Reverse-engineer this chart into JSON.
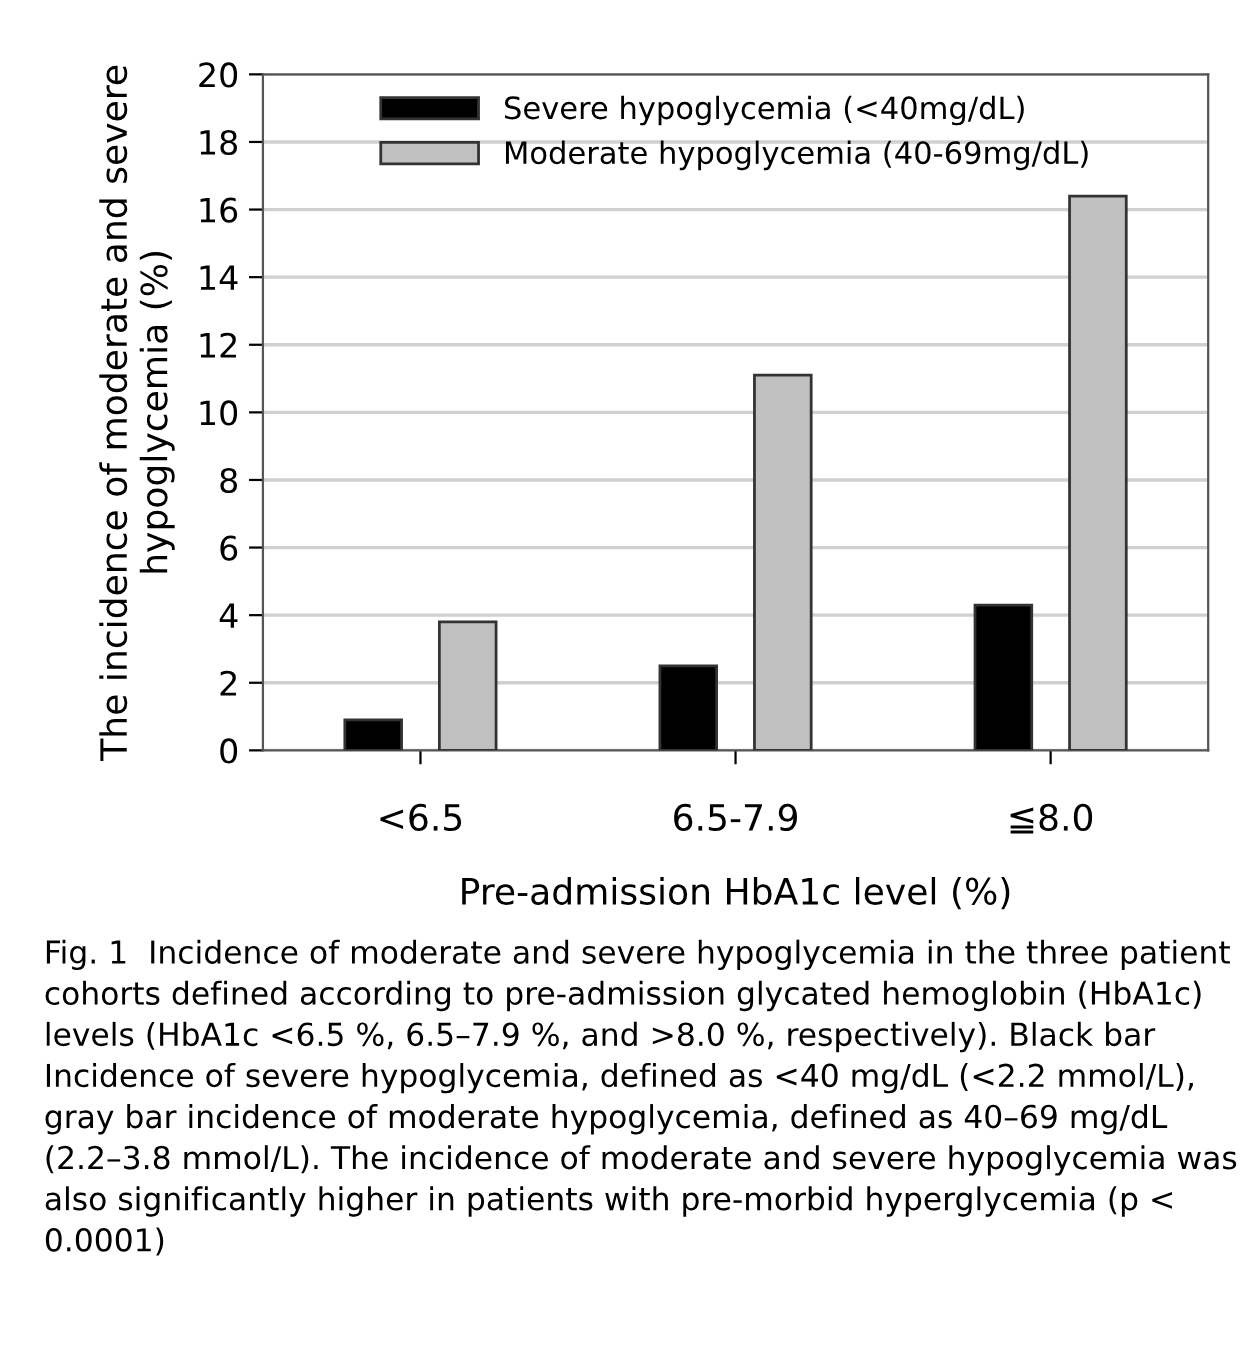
{
  "chart_data": {
    "type": "bar",
    "xlabel": "Pre-admission HbA1c level (%)",
    "ylabel": "The incidence of moderate and severe\nhypoglycemia (%)",
    "categories": [
      "<6.5",
      "6.5-7.9",
      "≦8.0"
    ],
    "series": [
      {
        "name": "Severe hypoglycemia (<40mg/dL)",
        "color": "#000000",
        "values": [
          0.9,
          2.5,
          4.3
        ]
      },
      {
        "name": "Moderate hypoglycemia (40-69mg/dL)",
        "color": "#c0c0c0",
        "values": [
          3.8,
          11.1,
          16.4
        ]
      }
    ],
    "ylim": [
      0,
      20
    ],
    "yticks": [
      0,
      2,
      4,
      6,
      8,
      10,
      12,
      14,
      16,
      18,
      20
    ],
    "grid": "y",
    "legend": "top",
    "annotations": [
      "Fig. 1  Incidence of moderate and severe hypoglycemia in the three patient cohorts defined according to pre-admission glycated hemoglobin (HbA1c) levels (HbA1c <6.5 %, 6.5–7.9 %, and >8.0 %, respectively). Black bar Incidence of severe hypoglycemia, defined as <40 mg/dL (<2.2 mmol/L), gray bar incidence of moderate hypoglycemia, defined as 40–69 mg/dL (2.2–3.8 mmol/L). The incidence of moderate and severe hypoglycemia was also significantly higher in patients with pre-morbid hyperglycemia (p < 0.0001)"
    ]
  }
}
